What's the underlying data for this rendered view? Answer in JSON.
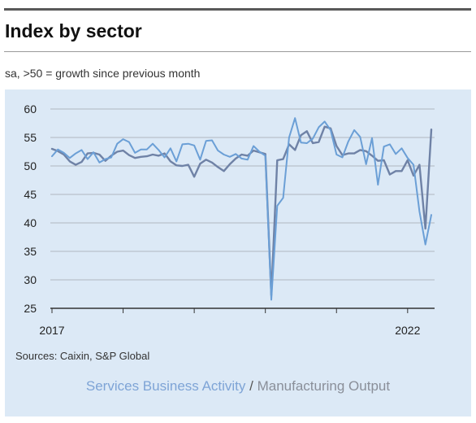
{
  "header": {
    "title": "Index by sector",
    "subtitle": "sa, >50 = growth since previous month"
  },
  "footer": {
    "source": "Sources: Caixin, S&P Global",
    "legend_services": "Services Business Activity",
    "legend_separator": "/",
    "legend_manufacturing": "Manufacturing Output"
  },
  "colors": {
    "services": "#6b9fd6",
    "manufacturing": "#6f82a6",
    "panel": "#dce9f6",
    "grid": "#b0b7c0"
  },
  "chart_data": {
    "type": "line",
    "title": "Index by sector",
    "subtitle": "sa, >50 = growth since previous month",
    "x_axis": {
      "labels": [
        "2017",
        "2022"
      ],
      "start": "2017-01",
      "end": "2022-05",
      "frequency": "monthly"
    },
    "y_axis": {
      "ylim": [
        25,
        60
      ],
      "ticks": [
        25,
        30,
        35,
        40,
        45,
        50,
        55,
        60
      ]
    },
    "grid": "horizontal",
    "x": [
      "2017-01",
      "2017-02",
      "2017-03",
      "2017-04",
      "2017-05",
      "2017-06",
      "2017-07",
      "2017-08",
      "2017-09",
      "2017-10",
      "2017-11",
      "2017-12",
      "2018-01",
      "2018-02",
      "2018-03",
      "2018-04",
      "2018-05",
      "2018-06",
      "2018-07",
      "2018-08",
      "2018-09",
      "2018-10",
      "2018-11",
      "2018-12",
      "2019-01",
      "2019-02",
      "2019-03",
      "2019-04",
      "2019-05",
      "2019-06",
      "2019-07",
      "2019-08",
      "2019-09",
      "2019-10",
      "2019-11",
      "2019-12",
      "2020-01",
      "2020-02",
      "2020-03",
      "2020-04",
      "2020-05",
      "2020-06",
      "2020-07",
      "2020-08",
      "2020-09",
      "2020-10",
      "2020-11",
      "2020-12",
      "2021-01",
      "2021-02",
      "2021-03",
      "2021-04",
      "2021-05",
      "2021-06",
      "2021-07",
      "2021-08",
      "2021-09",
      "2021-10",
      "2021-11",
      "2021-12",
      "2022-01",
      "2022-02",
      "2022-03",
      "2022-04",
      "2022-05"
    ],
    "series": [
      {
        "name": "Services Business Activity",
        "values": [
          51.7,
          52.9,
          52.3,
          51.4,
          52.2,
          52.8,
          51.2,
          52.4,
          50.6,
          51.2,
          51.5,
          53.9,
          54.7,
          54.2,
          52.3,
          52.9,
          52.9,
          53.9,
          52.8,
          51.5,
          53.1,
          50.8,
          53.8,
          53.9,
          53.6,
          51.1,
          54.4,
          54.5,
          52.7,
          52.0,
          51.6,
          52.1,
          51.3,
          51.1,
          53.5,
          52.5,
          51.8,
          26.5,
          43.0,
          44.4,
          55.0,
          58.4,
          54.1,
          54.0,
          54.8,
          56.8,
          57.8,
          56.3,
          52.0,
          51.5,
          54.3,
          56.3,
          55.1,
          50.3,
          54.9,
          46.7,
          53.4,
          53.8,
          52.1,
          53.1,
          51.4,
          50.2,
          42.0,
          36.2,
          41.4
        ]
      },
      {
        "name": "Manufacturing Output",
        "values": [
          53.0,
          52.6,
          52.0,
          50.8,
          50.2,
          50.7,
          52.2,
          52.3,
          52.0,
          50.9,
          51.8,
          52.5,
          52.7,
          51.9,
          51.4,
          51.6,
          51.7,
          52.0,
          51.8,
          52.2,
          50.8,
          50.1,
          50.0,
          50.2,
          48.1,
          50.4,
          51.1,
          50.6,
          49.8,
          49.1,
          50.3,
          51.3,
          52.0,
          51.8,
          52.7,
          52.4,
          52.1,
          27.3,
          51.0,
          51.2,
          53.8,
          52.8,
          55.4,
          56.1,
          54.0,
          54.2,
          56.9,
          56.6,
          53.5,
          51.9,
          52.2,
          52.2,
          52.8,
          52.6,
          51.8,
          50.9,
          51.0,
          48.5,
          49.1,
          49.1,
          51.0,
          48.3,
          50.2,
          39.0,
          56.4
        ]
      }
    ]
  }
}
